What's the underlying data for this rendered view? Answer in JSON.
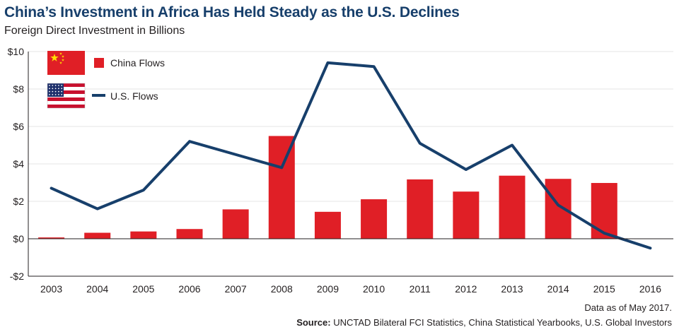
{
  "header": {
    "title": "China’s Investment in Africa Has Held Steady as the U.S. Declines",
    "subtitle": "Foreign Direct Investment in Billions"
  },
  "footer": {
    "note": "Data as of May 2017.",
    "source_label": "Source:",
    "source_text": "UNCTAD Bilateral FCI Statistics, China Statistical Yearbooks, U.S. Global Investors"
  },
  "colors": {
    "china": "#e01f26",
    "us": "#173f6b",
    "axis": "#231f20"
  },
  "chart_data": {
    "type": "bar",
    "title": "China’s Investment in Africa Has Held Steady as the U.S. Declines",
    "subtitle": "Foreign Direct Investment in Billions",
    "xlabel": "",
    "ylabel": "",
    "categories": [
      "2003",
      "2004",
      "2005",
      "2006",
      "2007",
      "2008",
      "2009",
      "2010",
      "2011",
      "2012",
      "2013",
      "2014",
      "2015",
      "2016"
    ],
    "ylim": [
      -2,
      10
    ],
    "yticks": [
      -2,
      0,
      2,
      4,
      6,
      8,
      10
    ],
    "ytick_labels": [
      "-$2",
      "$0",
      "$2",
      "$4",
      "$6",
      "$8",
      "$10"
    ],
    "grid": true,
    "legend_position": "top-left",
    "series": [
      {
        "name": "China Flows",
        "kind": "bar",
        "icon": "china-flag-icon",
        "values": [
          0.07,
          0.32,
          0.39,
          0.52,
          1.57,
          5.49,
          1.44,
          2.11,
          3.17,
          2.52,
          3.37,
          3.2,
          2.98,
          null
        ]
      },
      {
        "name": "U.S. Flows",
        "kind": "line",
        "icon": "us-flag-icon",
        "values": [
          2.7,
          1.6,
          2.6,
          5.2,
          4.5,
          3.8,
          9.4,
          9.2,
          5.1,
          3.7,
          5.0,
          1.8,
          0.3,
          -0.5
        ]
      }
    ]
  }
}
